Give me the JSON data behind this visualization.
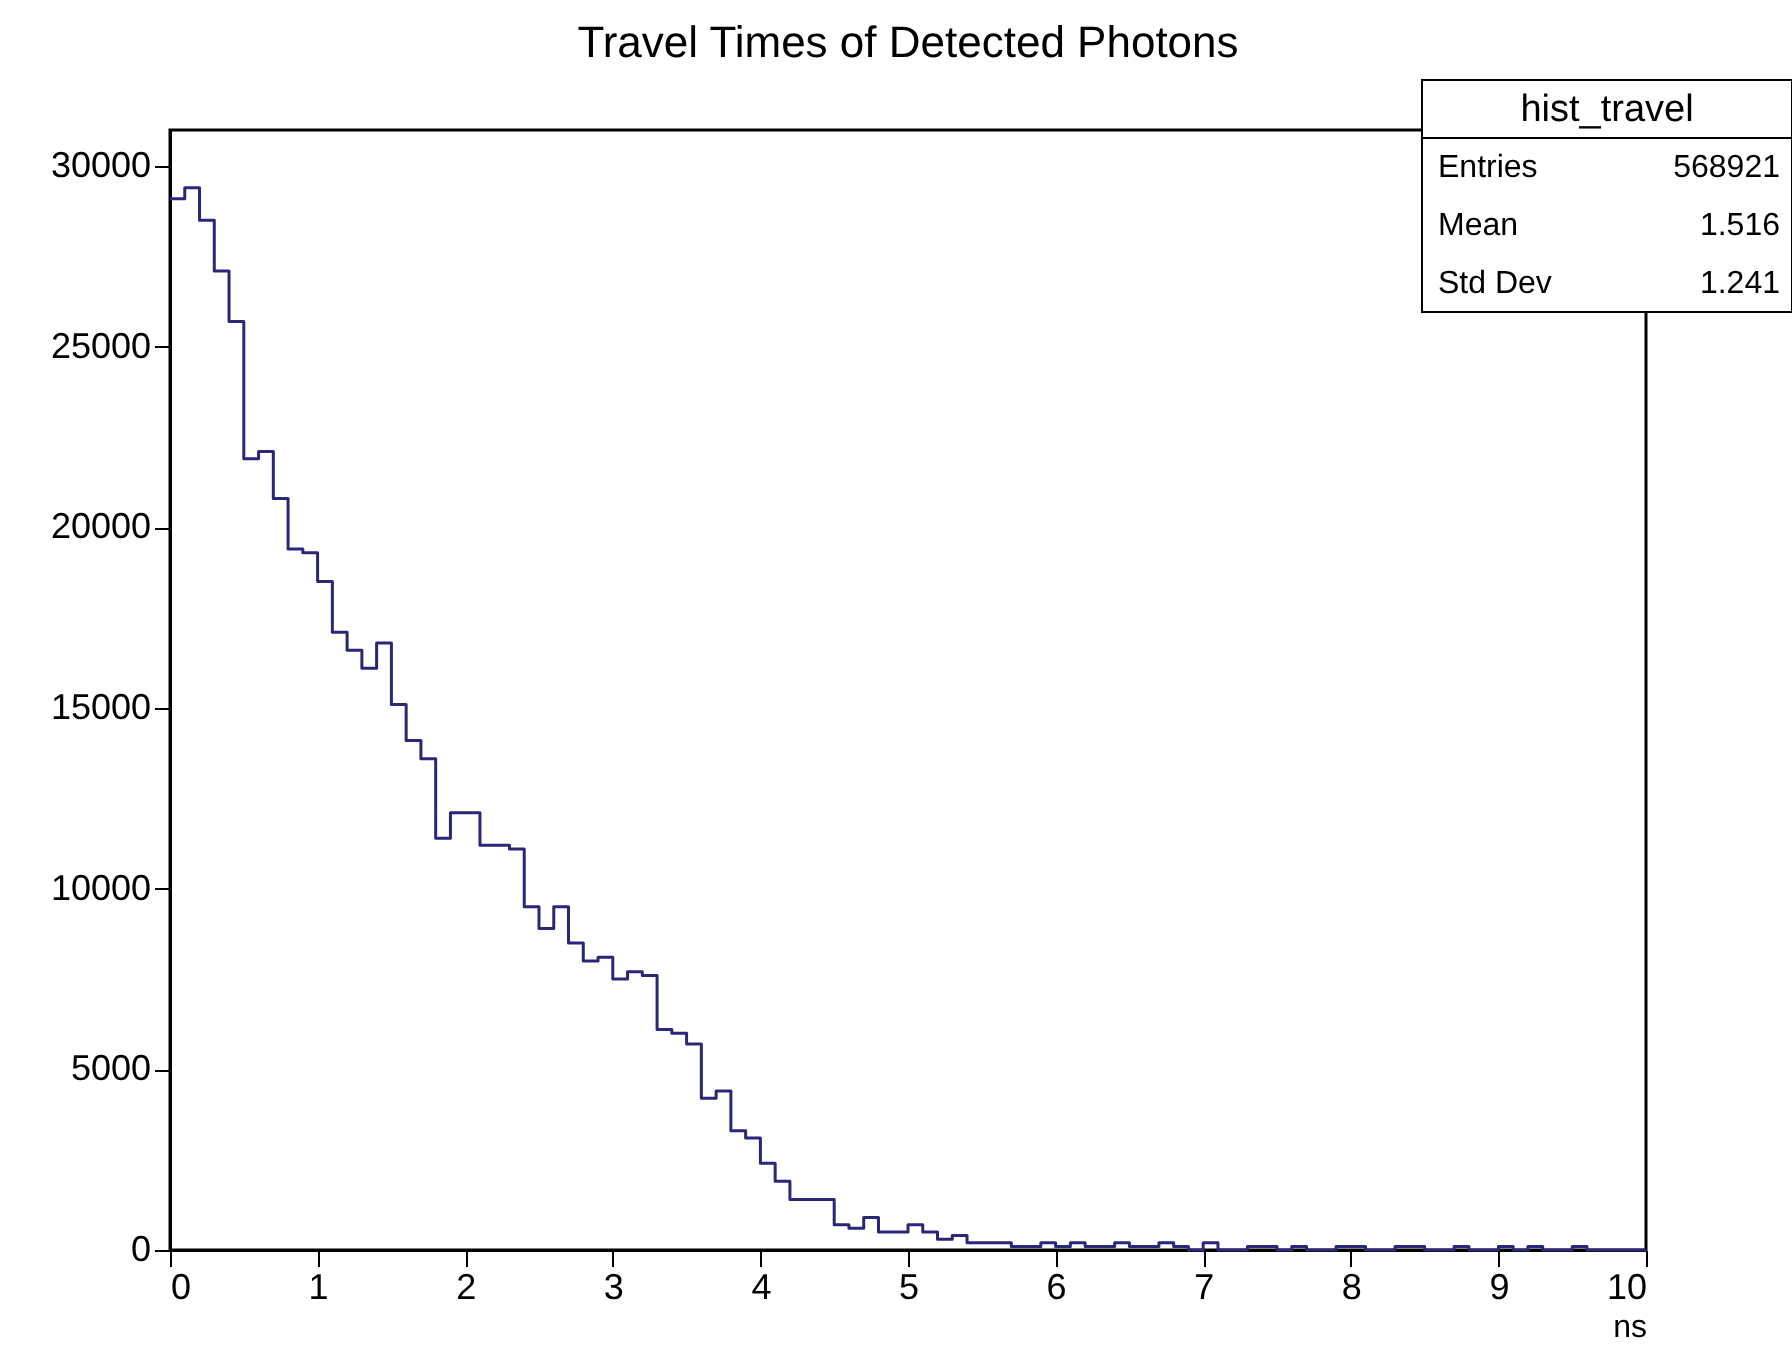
{
  "chart_data": {
    "type": "histogram",
    "title": "Travel Times of Detected Photons",
    "xlabel": "ns",
    "bins": [
      0,
      0.1,
      0.2,
      0.3,
      0.4,
      0.5,
      0.6,
      0.7,
      0.8,
      0.9,
      1,
      1.1,
      1.2,
      1.3,
      1.4,
      1.5,
      1.6,
      1.7,
      1.8,
      1.9,
      2,
      2.1,
      2.2,
      2.3,
      2.4,
      2.5,
      2.6,
      2.7,
      2.8,
      2.9,
      3,
      3.1,
      3.2,
      3.3,
      3.4,
      3.5,
      3.6,
      3.7,
      3.8,
      3.9,
      4,
      4.1,
      4.2,
      4.3,
      4.4,
      4.5,
      4.6,
      4.7,
      4.8,
      4.9,
      5,
      5.1,
      5.2,
      5.3,
      5.4,
      5.5,
      5.6,
      5.7,
      5.8,
      5.9,
      6,
      6.1,
      6.2,
      6.3,
      6.4,
      6.5,
      6.6,
      6.7,
      6.8,
      6.9,
      7,
      7.1,
      7.2,
      7.3,
      7.4,
      7.5,
      7.6,
      7.7,
      7.8,
      7.9,
      8,
      8.1,
      8.2,
      8.3,
      8.4,
      8.5,
      8.6,
      8.7,
      8.8,
      8.9,
      9,
      9.1,
      9.2,
      9.3,
      9.4,
      9.5,
      9.6,
      9.7,
      9.8,
      9.9,
      10
    ],
    "values": [
      29100,
      29400,
      28500,
      27100,
      25700,
      21900,
      22100,
      20800,
      19400,
      19300,
      18500,
      17100,
      16600,
      16100,
      16800,
      15100,
      14100,
      13600,
      11400,
      12100,
      12100,
      11200,
      11200,
      11100,
      9500,
      8900,
      9500,
      8500,
      8000,
      8100,
      7500,
      7700,
      7600,
      6100,
      6000,
      5700,
      4200,
      4400,
      3300,
      3100,
      2400,
      1900,
      1400,
      1400,
      1400,
      700,
      600,
      900,
      500,
      500,
      700,
      500,
      300,
      400,
      200,
      200,
      200,
      100,
      100,
      200,
      100,
      200,
      100,
      100,
      200,
      100,
      100,
      200,
      100,
      0,
      200,
      0,
      0,
      100,
      100,
      0,
      100,
      0,
      0,
      100,
      100,
      0,
      0,
      100,
      100,
      0,
      0,
      100,
      0,
      0,
      100,
      0,
      100,
      0,
      0,
      100,
      0,
      0,
      0,
      0
    ],
    "color": "#28287a",
    "xlim": [
      0,
      10
    ],
    "xticks": [
      0,
      1,
      2,
      3,
      4,
      5,
      6,
      7,
      8,
      9,
      10
    ],
    "ylim": [
      0,
      31000
    ],
    "yticks": [
      0,
      5000,
      10000,
      15000,
      20000,
      25000,
      30000
    ],
    "grid": false,
    "annotations": [
      "hist_travel",
      "Entries",
      "568921",
      "Mean",
      "1.516",
      "Std Dev",
      "1.241"
    ]
  }
}
